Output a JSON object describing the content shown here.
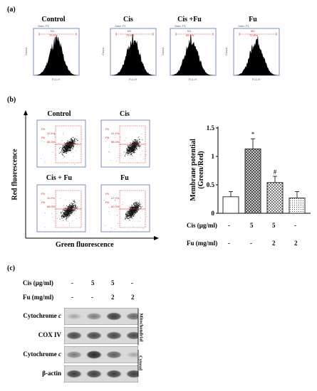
{
  "panel_a": {
    "label": "(a)",
    "headers": [
      "Control",
      "Cis",
      "Cis +Fu",
      "Fu"
    ],
    "hist_gate": "Gate: P1",
    "hist_marker": "M1",
    "hist_pcts": [
      "70.5%",
      "75.4%",
      "65.6%",
      "72.8%"
    ],
    "hist_ylabel": "Count",
    "hist_xlabel": "FL1-H"
  },
  "panel_b": {
    "label": "(b)",
    "scatter_titles": [
      "Control",
      "Cis",
      "Cis + Fu",
      "Fu"
    ],
    "scatter_gate_labels": [
      "P5",
      "P6"
    ],
    "scatter_pcts": [
      [
        "10.1%",
        "88.3%"
      ],
      [
        "41.1%",
        "58.0%"
      ],
      [
        "11.0%",
        "88.0%"
      ],
      [
        "17.0%",
        "82.0%"
      ]
    ],
    "y_axis_label": "Red fluorescence",
    "x_axis_label": "Green fluorescence"
  },
  "chart_data": {
    "type": "bar",
    "ylabel": "Membrane potential\n(Green/Red)",
    "ylim": [
      0,
      1.5
    ],
    "yticks": [
      "0",
      "0.5",
      "1",
      "1.5"
    ],
    "values": [
      0.29,
      1.13,
      0.54,
      0.27
    ],
    "errors": [
      0.09,
      0.18,
      0.11,
      0.11
    ],
    "annotations": [
      "",
      "*",
      "#",
      ""
    ],
    "patterns": [
      "white",
      "crosshatch-dark",
      "crosshatch",
      "dots"
    ],
    "cis_row": {
      "label": "Cis (μg/ml)",
      "values": [
        "-",
        "5",
        "5",
        "-"
      ]
    },
    "fu_row": {
      "label": "Fu (mg/ml)",
      "values": [
        "-",
        "-",
        "2",
        "2"
      ]
    }
  },
  "panel_c": {
    "label": "(c)",
    "cis_row": {
      "label": "Cis (μg/ml)",
      "values": [
        "-",
        "5",
        "5",
        "-"
      ]
    },
    "fu_row": {
      "label": "Fu (mg/ml)",
      "values": [
        "-",
        "-",
        "2",
        "2"
      ]
    },
    "blots": [
      {
        "name": "Cytochrome ",
        "italic": "c",
        "intensity": [
          0.35,
          0.55,
          0.85,
          0.65
        ]
      },
      {
        "name": "COX IV",
        "italic": "",
        "intensity": [
          0.8,
          0.8,
          0.8,
          0.8
        ]
      },
      {
        "name": "Cytochrome ",
        "italic": "c",
        "intensity": [
          0.55,
          0.95,
          0.7,
          0.35
        ]
      },
      {
        "name": "β-actin",
        "italic": "",
        "intensity": [
          0.85,
          0.85,
          0.85,
          0.85
        ]
      }
    ],
    "fraction_labels": [
      "Mitochondrial",
      "Cytosol"
    ]
  }
}
